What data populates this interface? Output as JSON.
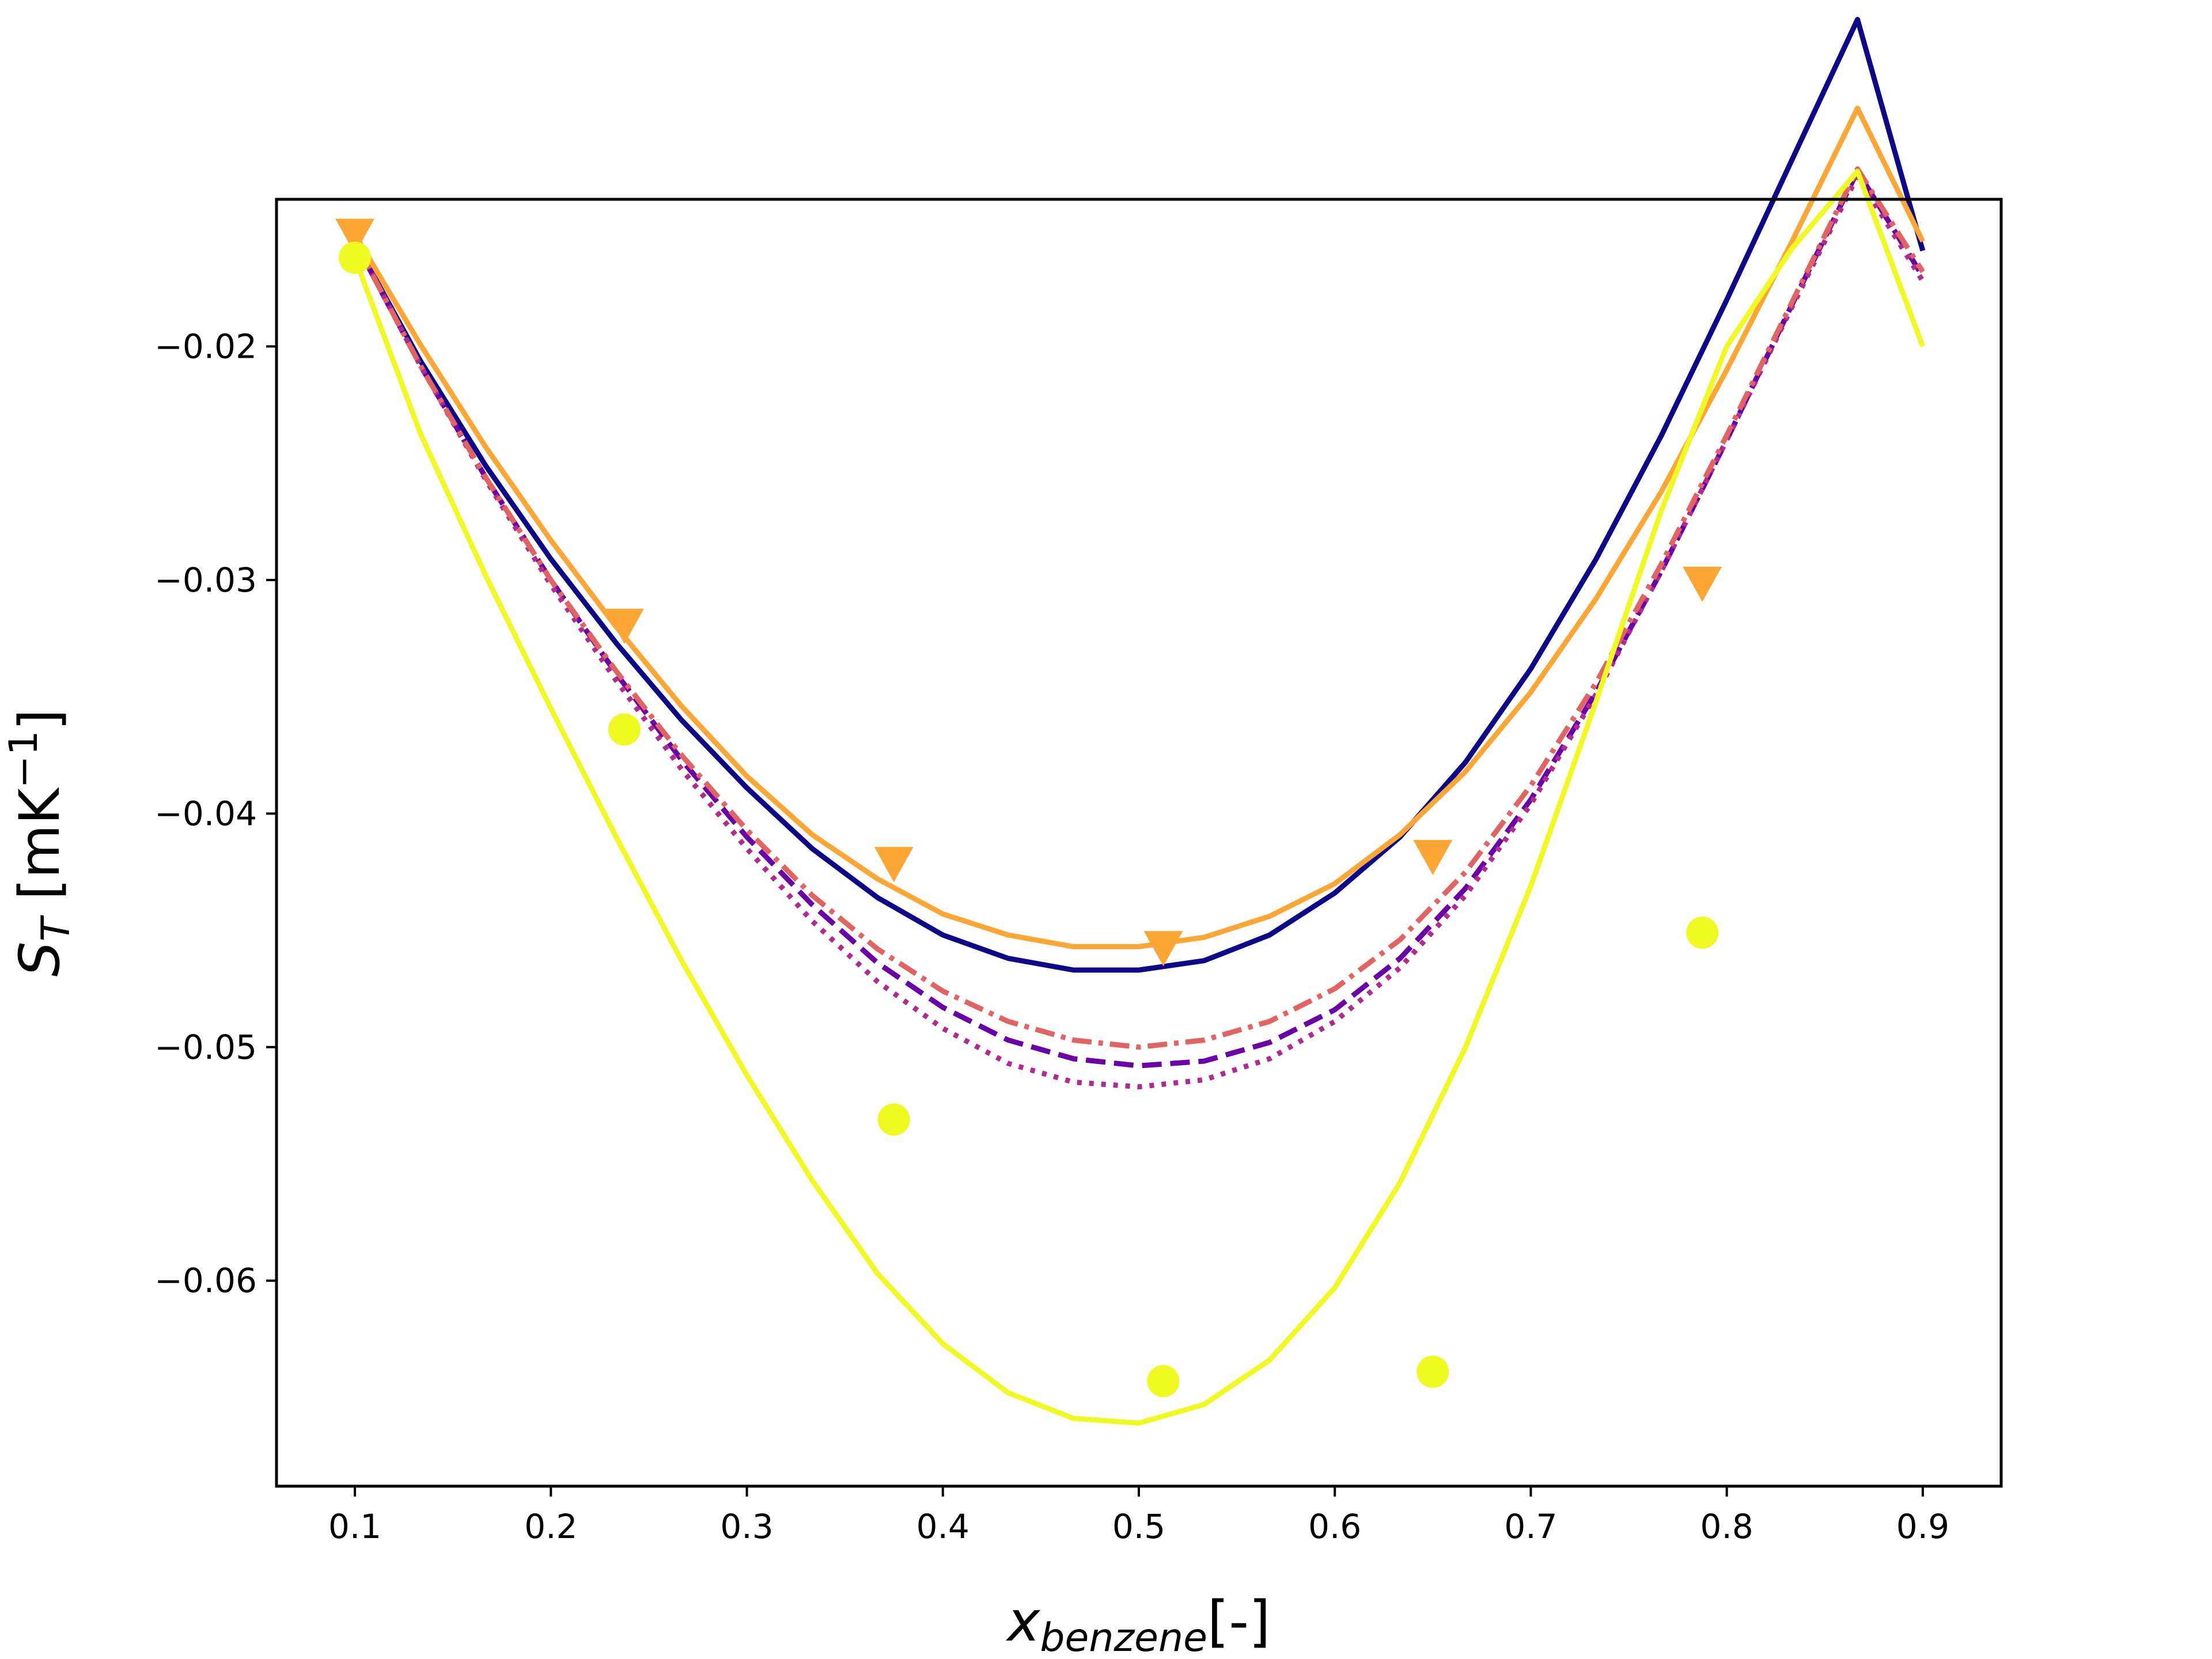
{
  "chart_data": {
    "type": "line",
    "title": "",
    "xlabel": {
      "main": "x",
      "sub": "benzene",
      "suffix": "[-]"
    },
    "ylabel": {
      "main": "S",
      "sub": "T",
      "prefix": " [mK",
      "sup": "−1",
      "suffix": "]"
    },
    "xlim": [
      0.06,
      0.94
    ],
    "ylim": [
      -0.0688,
      -0.0137
    ],
    "xticks": [
      0.1,
      0.2,
      0.3,
      0.4,
      0.5,
      0.6,
      0.7,
      0.8,
      0.9
    ],
    "xtick_labels": [
      "0.1",
      "0.2",
      "0.3",
      "0.4",
      "0.5",
      "0.6",
      "0.7",
      "0.8",
      "0.9"
    ],
    "yticks": [
      -0.06,
      -0.05,
      -0.04,
      -0.03,
      -0.02
    ],
    "ytick_labels": [
      "−0.06",
      "−0.05",
      "−0.04",
      "−0.03",
      "−0.02"
    ],
    "grid": false,
    "legend": "none",
    "x": [
      0.1,
      0.1333,
      0.1667,
      0.2,
      0.2333,
      0.2667,
      0.3,
      0.3333,
      0.3667,
      0.4,
      0.4333,
      0.4667,
      0.5,
      0.5333,
      0.5667,
      0.6,
      0.6333,
      0.6667,
      0.7,
      0.7333,
      0.7667,
      0.8,
      0.8333,
      0.8667,
      0.9
    ],
    "series": [
      {
        "color": "#0d0887",
        "style": "solid",
        "marker": "none",
        "values": [
          -0.0155,
          -0.0206,
          -0.0251,
          -0.0291,
          -0.0327,
          -0.036,
          -0.0389,
          -0.0415,
          -0.0436,
          -0.0452,
          -0.0462,
          -0.0467,
          -0.0467,
          -0.0463,
          -0.0452,
          -0.0434,
          -0.041,
          -0.0378,
          -0.0338,
          -0.0291,
          -0.0238,
          -0.018,
          -0.012,
          -0.006,
          -0.0159
        ]
      },
      {
        "color": "#6a00a8",
        "style": "dashed",
        "marker": "none",
        "values": [
          -0.0155,
          -0.0208,
          -0.0256,
          -0.03,
          -0.034,
          -0.0377,
          -0.041,
          -0.0439,
          -0.0464,
          -0.0483,
          -0.0497,
          -0.0505,
          -0.0508,
          -0.0506,
          -0.0498,
          -0.0484,
          -0.0462,
          -0.0432,
          -0.0394,
          -0.0348,
          -0.0296,
          -0.024,
          -0.0182,
          -0.0125,
          -0.017
        ]
      },
      {
        "color": "#b12a90",
        "style": "dotted",
        "marker": "none",
        "values": [
          -0.0155,
          -0.0208,
          -0.0257,
          -0.0302,
          -0.0343,
          -0.0381,
          -0.0415,
          -0.0446,
          -0.0472,
          -0.0492,
          -0.0507,
          -0.0515,
          -0.0517,
          -0.0514,
          -0.0505,
          -0.0489,
          -0.0466,
          -0.0435,
          -0.0396,
          -0.0349,
          -0.0296,
          -0.024,
          -0.0183,
          -0.0127,
          -0.0172
        ]
      },
      {
        "color": "#e16462",
        "style": "dashdot",
        "marker": "none",
        "values": [
          -0.0155,
          -0.0208,
          -0.0256,
          -0.03,
          -0.0339,
          -0.0375,
          -0.0407,
          -0.0435,
          -0.0458,
          -0.0476,
          -0.0489,
          -0.0497,
          -0.05,
          -0.0497,
          -0.0489,
          -0.0475,
          -0.0454,
          -0.0425,
          -0.0388,
          -0.0344,
          -0.0293,
          -0.0238,
          -0.0181,
          -0.0124,
          -0.0168
        ]
      },
      {
        "color": "#fca636",
        "style": "solid",
        "marker": "triangle-down",
        "values": [
          -0.0152,
          -0.0199,
          -0.0243,
          -0.0283,
          -0.032,
          -0.0354,
          -0.0384,
          -0.0409,
          -0.0428,
          -0.0443,
          -0.0452,
          -0.0457,
          -0.0457,
          -0.0453,
          -0.0444,
          -0.043,
          -0.0409,
          -0.0382,
          -0.0348,
          -0.0308,
          -0.0262,
          -0.021,
          -0.0155,
          -0.0098,
          -0.0155
        ],
        "marker_x": [
          0.1,
          0.2375,
          0.375,
          0.5125,
          0.65,
          0.7875
        ],
        "marker_y": [
          -0.0152,
          -0.0319,
          -0.0421,
          -0.0457,
          -0.0418,
          -0.0301
        ]
      },
      {
        "color": "#f0f921",
        "style": "solid",
        "marker": "circle",
        "values": [
          -0.0162,
          -0.0237,
          -0.0298,
          -0.0355,
          -0.041,
          -0.0463,
          -0.0512,
          -0.0557,
          -0.0597,
          -0.0627,
          -0.0648,
          -0.0659,
          -0.0661,
          -0.0653,
          -0.0634,
          -0.0603,
          -0.0558,
          -0.05,
          -0.0431,
          -0.0352,
          -0.027,
          -0.02,
          -0.0158,
          -0.0125,
          -0.02
        ],
        "marker_x": [
          0.1,
          0.2375,
          0.375,
          0.5125,
          0.65,
          0.7875
        ],
        "marker_y": [
          -0.0162,
          -0.0364,
          -0.0531,
          -0.0643,
          -0.0639,
          -0.0451
        ]
      }
    ]
  }
}
